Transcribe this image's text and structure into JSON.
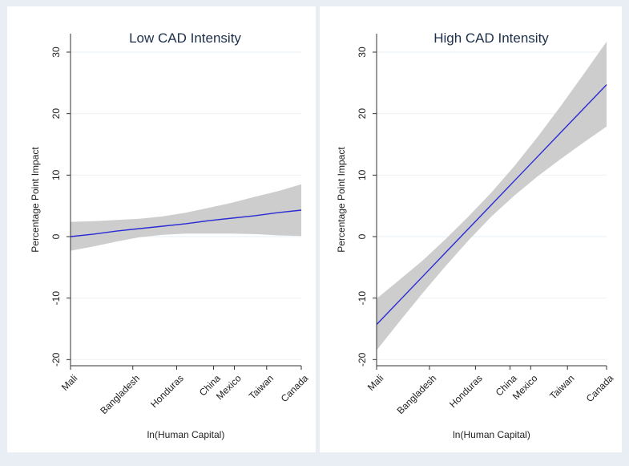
{
  "chart_data": [
    {
      "type": "line",
      "title": "Low CAD Intensity",
      "xlabel": "ln(Human Capital)",
      "ylabel": "Percentage Point Impact",
      "ylim": [
        -21,
        33
      ],
      "yticks": [
        -20,
        -10,
        0,
        10,
        20,
        30
      ],
      "x_tick_labels": [
        "Mali",
        "Bangladesh",
        "Honduras",
        "China",
        "Mexico",
        "Taiwan",
        "Canada"
      ],
      "x_tick_positions": [
        0,
        0.27,
        0.46,
        0.62,
        0.71,
        0.85,
        1.0
      ],
      "grid": true,
      "series": [
        {
          "color": "#2b2bd6",
          "x": [
            0,
            0.1,
            0.2,
            0.3,
            0.4,
            0.5,
            0.6,
            0.7,
            0.8,
            0.9,
            1.0
          ],
          "y": [
            0.0,
            0.4,
            0.9,
            1.3,
            1.7,
            2.1,
            2.6,
            3.0,
            3.4,
            3.9,
            4.3
          ]
        }
      ],
      "confidence_band": {
        "color": "#c8c8c8",
        "x": [
          0,
          0.1,
          0.2,
          0.3,
          0.4,
          0.5,
          0.6,
          0.7,
          0.8,
          0.9,
          1.0
        ],
        "lower": [
          -2.3,
          -1.6,
          -0.8,
          -0.1,
          0.3,
          0.5,
          0.5,
          0.5,
          0.4,
          0.2,
          0.1
        ],
        "upper": [
          2.4,
          2.5,
          2.7,
          2.9,
          3.3,
          3.9,
          4.7,
          5.5,
          6.5,
          7.4,
          8.5
        ]
      }
    },
    {
      "type": "line",
      "title": "High CAD Intensity",
      "xlabel": "ln(Human Capital)",
      "ylabel": "Percentage Point Impact",
      "ylim": [
        -21,
        33
      ],
      "yticks": [
        -20,
        -10,
        0,
        10,
        20,
        30
      ],
      "x_tick_labels": [
        "Mali",
        "Bangladesh",
        "Honduras",
        "China",
        "Mexico",
        "Taiwan",
        "Canada"
      ],
      "x_tick_positions": [
        0,
        0.23,
        0.43,
        0.58,
        0.67,
        0.83,
        1.0
      ],
      "grid": true,
      "series": [
        {
          "color": "#2b2bd6",
          "x": [
            0,
            0.1,
            0.2,
            0.3,
            0.4,
            0.5,
            0.6,
            0.7,
            0.8,
            0.9,
            1.0
          ],
          "y": [
            -14.3,
            -10.4,
            -6.5,
            -2.6,
            1.3,
            5.2,
            9.1,
            13.0,
            16.9,
            20.8,
            24.7
          ]
        }
      ],
      "confidence_band": {
        "color": "#c8c8c8",
        "x": [
          0,
          0.1,
          0.2,
          0.3,
          0.4,
          0.5,
          0.6,
          0.7,
          0.8,
          0.9,
          1.0
        ],
        "lower": [
          -18.5,
          -13.8,
          -9.2,
          -4.8,
          -0.6,
          3.3,
          6.7,
          9.8,
          12.6,
          15.3,
          17.9
        ],
        "upper": [
          -10.1,
          -7.0,
          -3.9,
          -0.4,
          3.3,
          7.2,
          11.5,
          16.2,
          21.2,
          26.4,
          31.7
        ]
      }
    }
  ]
}
